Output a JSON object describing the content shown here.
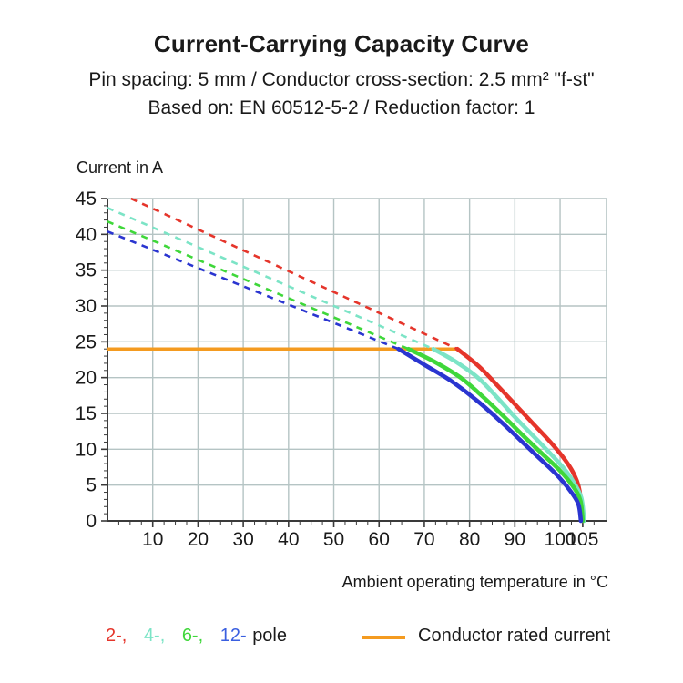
{
  "header": {
    "title": "Current-Carrying Capacity Curve",
    "subtitle1": "Pin spacing: 5 mm / Conductor cross-section: 2.5 mm² \"f-st\"",
    "subtitle2": "Based on: EN 60512-5-2 / Reduction factor: 1"
  },
  "chart_data": {
    "type": "line",
    "title": "Current-Carrying Capacity Curve",
    "xlabel": "Ambient operating temperature in °C",
    "ylabel": "Current in A",
    "xlim": [
      0,
      110.25
    ],
    "ylim": [
      0,
      45
    ],
    "x_ticks": [
      10,
      20,
      30,
      40,
      50,
      60,
      70,
      80,
      90,
      100,
      105
    ],
    "y_ticks": [
      0,
      5,
      10,
      15,
      20,
      25,
      30,
      35,
      40,
      45
    ],
    "x_minor_step": 2.5,
    "y_minor_step": 1,
    "grid": true,
    "rated_current": {
      "label": "Conductor rated current",
      "value": 24,
      "x_start": 0,
      "x_end": 77.3,
      "color": "#f49b20"
    },
    "series": [
      {
        "name": "2-pole",
        "poles": 2,
        "color": "#e5352b",
        "current_at_0C": 45,
        "rated_cross_temp": 77.3,
        "max_temp": 104.9,
        "dashed": [
          [
            5.2,
            45
          ],
          [
            77.3,
            24
          ]
        ],
        "solid": [
          [
            77.3,
            24
          ],
          [
            82,
            21.6
          ],
          [
            86,
            19.0
          ],
          [
            90,
            16.3
          ],
          [
            94,
            13.6
          ],
          [
            98,
            10.9
          ],
          [
            101,
            8.6
          ],
          [
            103,
            6.6
          ],
          [
            104.3,
            4.2
          ],
          [
            104.9,
            0
          ]
        ]
      },
      {
        "name": "4-pole",
        "poles": 4,
        "color": "#7ce4c6",
        "current_at_0C": 43.7,
        "rated_cross_temp": 72,
        "max_temp": 105.3,
        "dashed": [
          [
            0,
            43.7
          ],
          [
            72,
            24
          ]
        ],
        "solid": [
          [
            72,
            24
          ],
          [
            77,
            22.2
          ],
          [
            82,
            19.9
          ],
          [
            86,
            17.3
          ],
          [
            90,
            14.5
          ],
          [
            94,
            11.9
          ],
          [
            98,
            9.3
          ],
          [
            101,
            7.2
          ],
          [
            103,
            5.4
          ],
          [
            104.7,
            3.2
          ],
          [
            105.3,
            0
          ]
        ]
      },
      {
        "name": "6-pole",
        "poles": 6,
        "color": "#3fd73a",
        "current_at_0C": 41.8,
        "rated_cross_temp": 66.5,
        "max_temp": 105.0,
        "dashed": [
          [
            0,
            41.8
          ],
          [
            66.5,
            24
          ]
        ],
        "solid": [
          [
            66.5,
            24
          ],
          [
            72,
            22.3
          ],
          [
            78,
            20.0
          ],
          [
            83,
            17.3
          ],
          [
            88,
            14.3
          ],
          [
            92,
            11.8
          ],
          [
            96,
            9.4
          ],
          [
            100,
            7.0
          ],
          [
            103,
            4.7
          ],
          [
            104.5,
            2.8
          ],
          [
            105.0,
            0
          ]
        ]
      },
      {
        "name": "12-pole",
        "poles": 12,
        "color": "#2a35d0",
        "current_at_0C": 40.4,
        "rated_cross_temp": 64.3,
        "max_temp": 104.6,
        "dashed": [
          [
            0,
            40.4
          ],
          [
            64.3,
            24
          ]
        ],
        "solid": [
          [
            64.3,
            24
          ],
          [
            70,
            21.8
          ],
          [
            76,
            19.5
          ],
          [
            82,
            16.6
          ],
          [
            87,
            13.8
          ],
          [
            91,
            11.4
          ],
          [
            95,
            9.0
          ],
          [
            99,
            6.6
          ],
          [
            102,
            4.4
          ],
          [
            104,
            2.4
          ],
          [
            104.6,
            0
          ]
        ]
      }
    ],
    "legend_position": "bottom"
  },
  "legend": {
    "poles": [
      {
        "label": "2-,",
        "color": "#e5352b"
      },
      {
        "label": "4-,",
        "color": "#7ce4c6"
      },
      {
        "label": "6-,",
        "color": "#3fd73a"
      },
      {
        "label": "12-",
        "color": "#3a5fe0"
      }
    ],
    "suffix": "pole",
    "rated_label": "Conductor rated current",
    "rated_color": "#f49b20"
  },
  "style_colors": {
    "grid": "#b5c4c4",
    "axis": "#3a3a3a",
    "text": "#1a1a1a"
  }
}
